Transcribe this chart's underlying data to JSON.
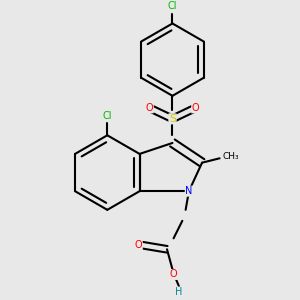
{
  "background_color": "#e8e8e8",
  "line_color": "#000000",
  "bond_width": 1.5,
  "atom_colors": {
    "Cl": "#00bb00",
    "S": "#cccc00",
    "O": "#ff0000",
    "N": "#0000ff",
    "H": "#008888",
    "C": "#000000"
  }
}
